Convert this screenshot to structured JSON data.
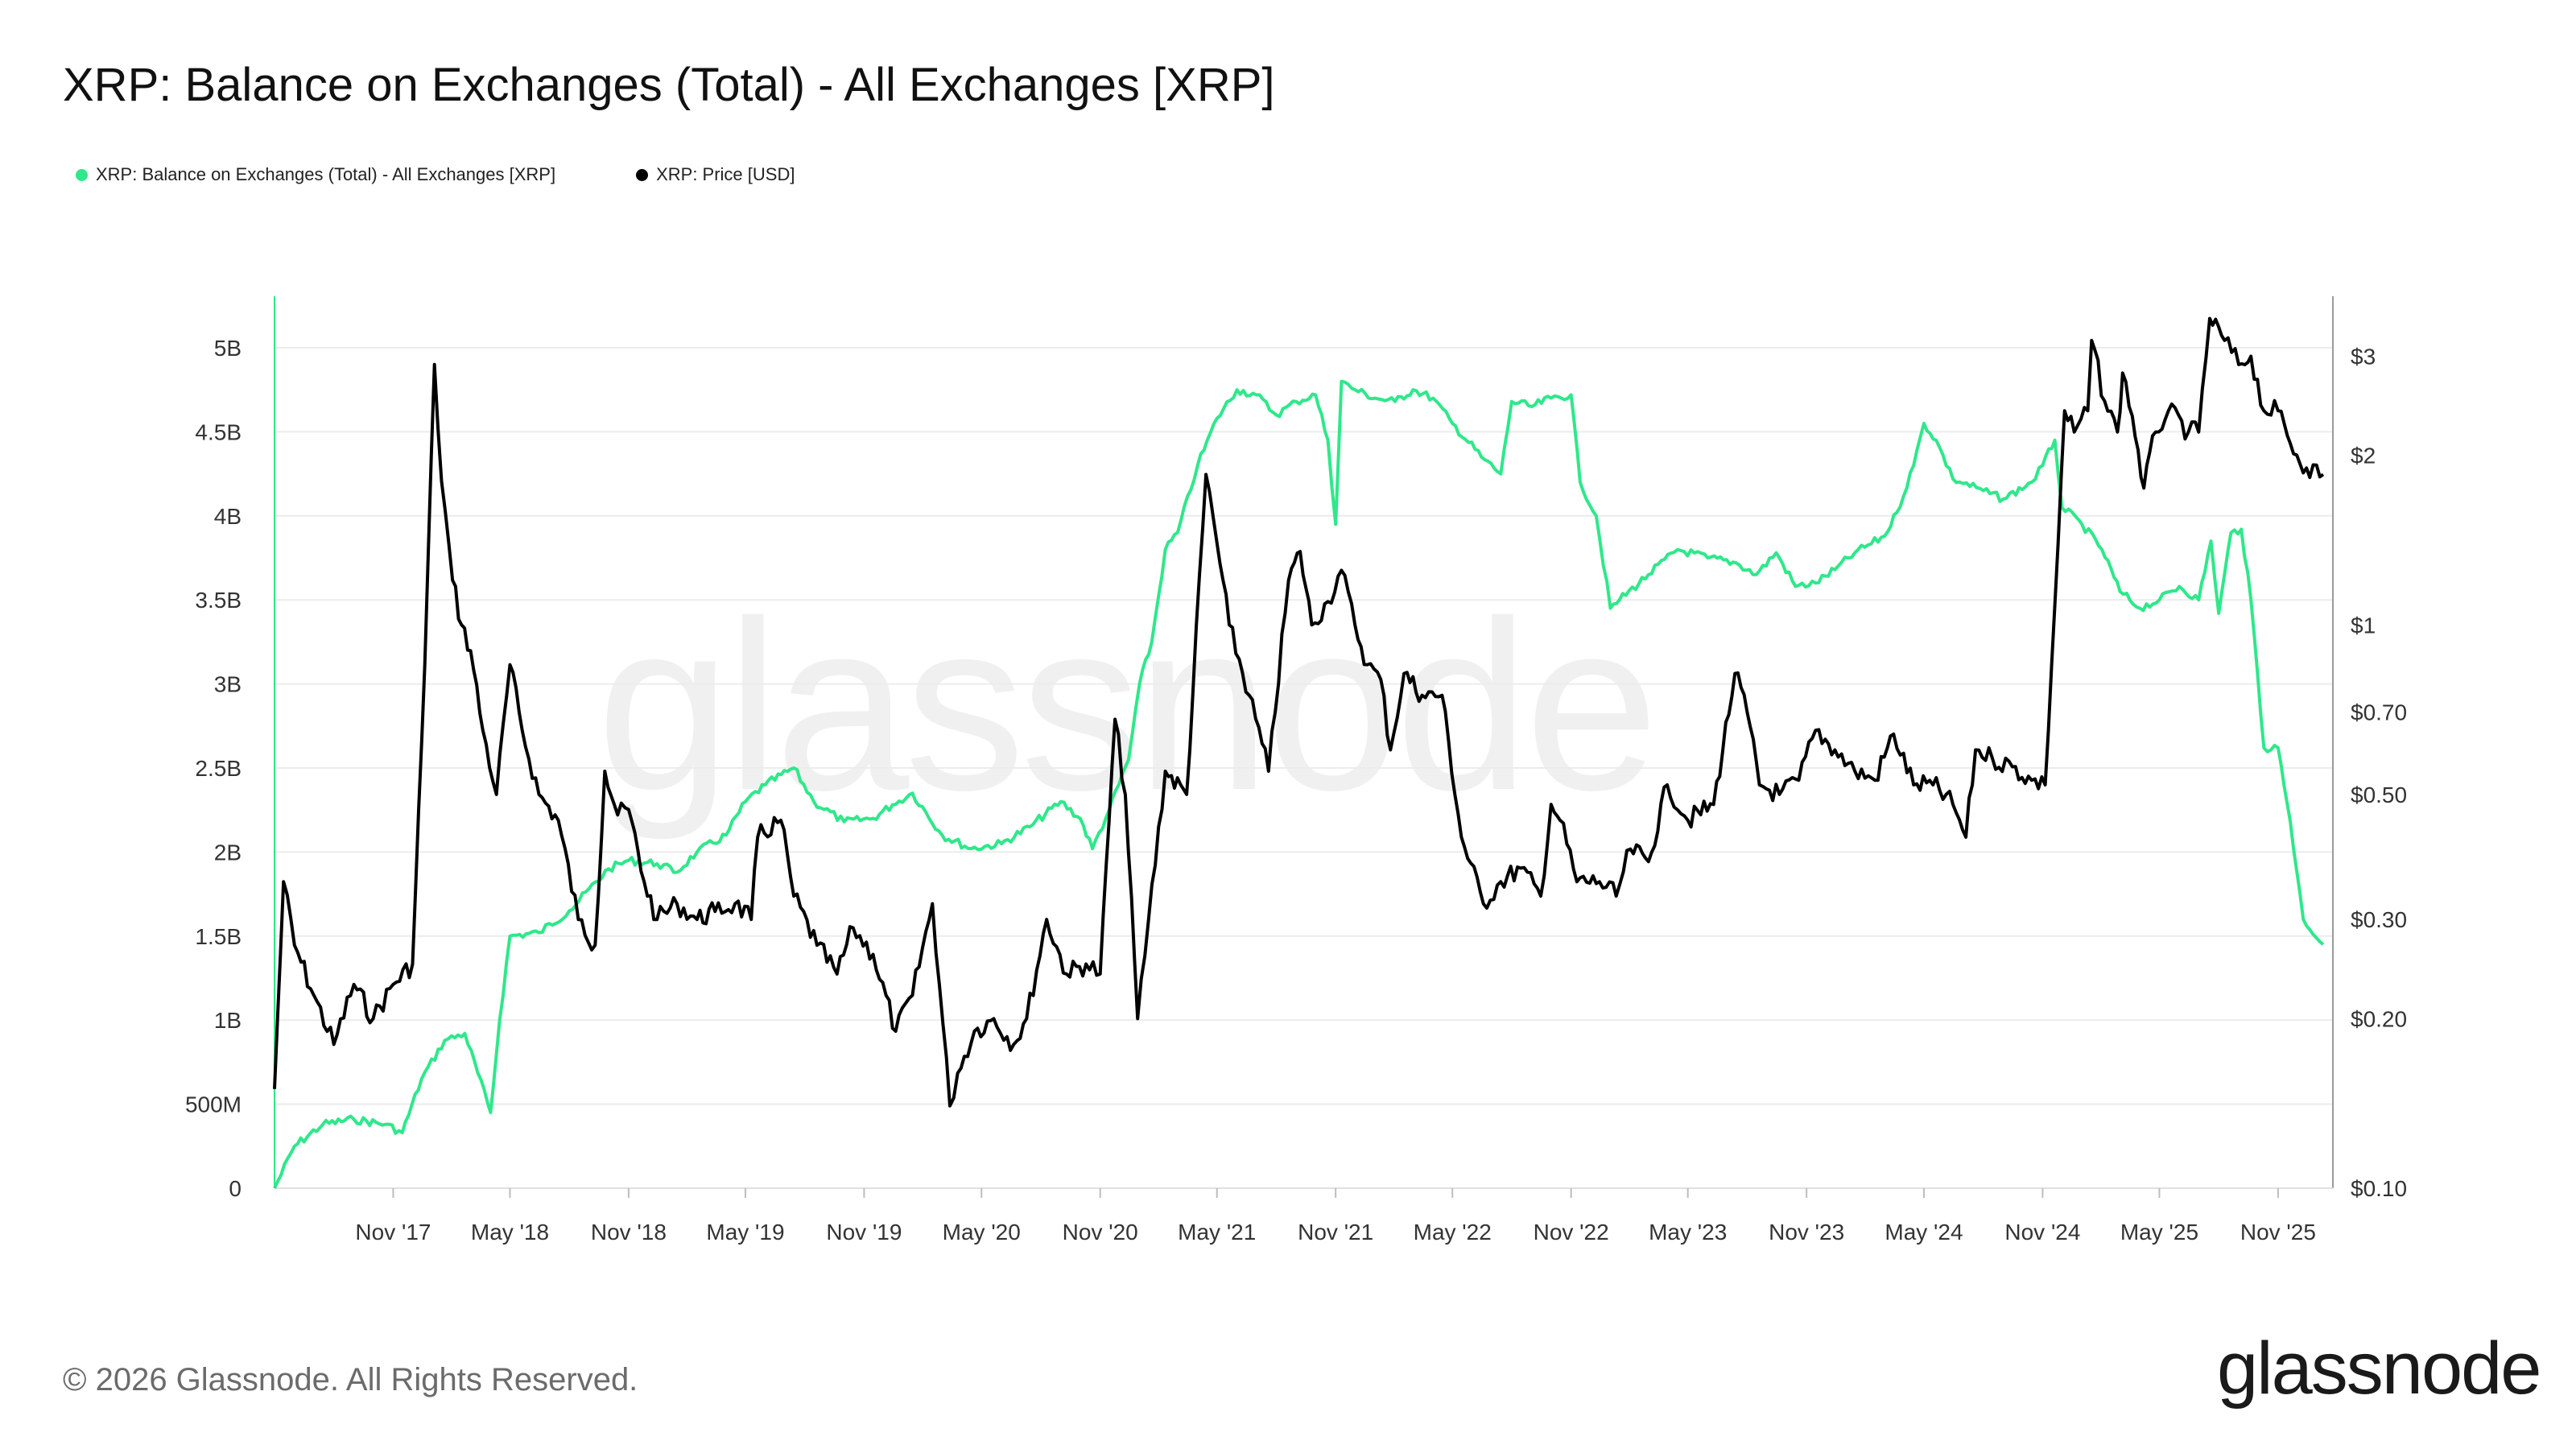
{
  "title": "XRP: Balance on Exchanges (Total) - All Exchanges [XRP]",
  "footer": "© 2026 Glassnode. All Rights Reserved.",
  "brand": "glassnode",
  "watermark": "glassnode",
  "colors": {
    "balance": "#2ee88a",
    "price": "#000000",
    "grid": "#ececec"
  },
  "legend": [
    {
      "name": "XRP: Balance on Exchanges (Total) - All Exchanges [XRP]",
      "color": "#2ee88a"
    },
    {
      "name": "XRP: Price [USD]",
      "color": "#000000"
    }
  ],
  "chart_data": {
    "type": "line",
    "x_ticks": [
      "Nov '17",
      "May '18",
      "Nov '18",
      "May '19",
      "Nov '19",
      "May '20",
      "Nov '20",
      "May '21",
      "Nov '21",
      "May '22",
      "Nov '22",
      "May '23",
      "Nov '23",
      "May '24",
      "Nov '24",
      "May '25",
      "Nov '25"
    ],
    "left_axis": {
      "ticks": [
        "0",
        "500M",
        "1B",
        "1.5B",
        "2B",
        "2.5B",
        "3B",
        "3.5B",
        "4B",
        "4.5B",
        "5B"
      ],
      "tick_values": [
        0,
        0.5,
        1,
        1.5,
        2,
        2.5,
        3,
        3.5,
        4,
        4.5,
        5
      ],
      "unit": "B XRP"
    },
    "right_axis": {
      "scale": "log",
      "ticks": [
        "$0.10",
        "$0.20",
        "$0.30",
        "$0.50",
        "$0.70",
        "$1",
        "$2",
        "$3"
      ],
      "tick_values": [
        0.1,
        0.2,
        0.3,
        0.5,
        0.7,
        1,
        2,
        3
      ]
    },
    "x_range": [
      "2017-05-01",
      "2026-01-15"
    ],
    "grid": true,
    "legend_position": "top-left",
    "series": [
      {
        "name": "XRP: Balance on Exchanges (Total) - All Exchanges [XRP]",
        "axis": "left",
        "color": "#2ee88a",
        "points": [
          [
            "2017-05-01",
            0.0
          ],
          [
            "2017-06-01",
            0.25
          ],
          [
            "2017-07-15",
            0.38
          ],
          [
            "2017-09-01",
            0.41
          ],
          [
            "2017-10-20",
            0.38
          ],
          [
            "2017-11-15",
            0.33
          ],
          [
            "2017-12-15",
            0.65
          ],
          [
            "2018-01-20",
            0.88
          ],
          [
            "2018-02-20",
            0.92
          ],
          [
            "2018-04-01",
            0.45
          ],
          [
            "2018-04-15",
            1.0
          ],
          [
            "2018-05-01",
            1.5
          ],
          [
            "2018-06-15",
            1.52
          ],
          [
            "2018-08-01",
            1.65
          ],
          [
            "2018-10-01",
            1.9
          ],
          [
            "2018-11-01",
            1.95
          ],
          [
            "2018-12-15",
            1.93
          ],
          [
            "2019-01-15",
            1.88
          ],
          [
            "2019-02-15",
            2.0
          ],
          [
            "2019-04-01",
            2.1
          ],
          [
            "2019-05-01",
            2.3
          ],
          [
            "2019-06-01",
            2.4
          ],
          [
            "2019-07-15",
            2.5
          ],
          [
            "2019-08-15",
            2.3
          ],
          [
            "2019-10-01",
            2.18
          ],
          [
            "2019-11-15",
            2.2
          ],
          [
            "2019-12-15",
            2.28
          ],
          [
            "2020-01-15",
            2.35
          ],
          [
            "2020-03-01",
            2.1
          ],
          [
            "2020-04-15",
            2.02
          ],
          [
            "2020-06-01",
            2.05
          ],
          [
            "2020-07-15",
            2.15
          ],
          [
            "2020-09-01",
            2.3
          ],
          [
            "2020-10-01",
            2.2
          ],
          [
            "2020-10-20",
            2.02
          ],
          [
            "2020-11-15",
            2.25
          ],
          [
            "2020-12-15",
            2.55
          ],
          [
            "2021-01-01",
            3.0
          ],
          [
            "2021-01-20",
            3.25
          ],
          [
            "2021-02-10",
            3.8
          ],
          [
            "2021-03-01",
            3.9
          ],
          [
            "2021-04-01",
            4.3
          ],
          [
            "2021-05-01",
            4.58
          ],
          [
            "2021-06-01",
            4.75
          ],
          [
            "2021-07-01",
            4.72
          ],
          [
            "2021-08-01",
            4.6
          ],
          [
            "2021-09-01",
            4.68
          ],
          [
            "2021-10-01",
            4.72
          ],
          [
            "2021-10-20",
            4.45
          ],
          [
            "2021-11-01",
            3.95
          ],
          [
            "2021-11-10",
            4.8
          ],
          [
            "2021-12-01",
            4.75
          ],
          [
            "2022-01-01",
            4.7
          ],
          [
            "2022-02-01",
            4.68
          ],
          [
            "2022-03-01",
            4.75
          ],
          [
            "2022-04-01",
            4.7
          ],
          [
            "2022-05-01",
            4.55
          ],
          [
            "2022-06-15",
            4.35
          ],
          [
            "2022-07-15",
            4.25
          ],
          [
            "2022-08-01",
            4.68
          ],
          [
            "2022-09-01",
            4.65
          ],
          [
            "2022-10-01",
            4.7
          ],
          [
            "2022-11-01",
            4.72
          ],
          [
            "2022-11-15",
            4.2
          ],
          [
            "2022-12-10",
            4.0
          ],
          [
            "2023-01-01",
            3.45
          ],
          [
            "2023-01-15",
            3.5
          ],
          [
            "2023-03-01",
            3.65
          ],
          [
            "2023-04-15",
            3.8
          ],
          [
            "2023-06-01",
            3.75
          ],
          [
            "2023-07-15",
            3.72
          ],
          [
            "2023-08-15",
            3.65
          ],
          [
            "2023-09-15",
            3.78
          ],
          [
            "2023-10-15",
            3.58
          ],
          [
            "2023-11-15",
            3.6
          ],
          [
            "2023-12-15",
            3.68
          ],
          [
            "2024-01-15",
            3.78
          ],
          [
            "2024-03-01",
            3.88
          ],
          [
            "2024-03-20",
            4.02
          ],
          [
            "2024-04-15",
            4.3
          ],
          [
            "2024-05-01",
            4.55
          ],
          [
            "2024-05-20",
            4.45
          ],
          [
            "2024-06-15",
            4.22
          ],
          [
            "2024-08-01",
            4.15
          ],
          [
            "2024-09-01",
            4.1
          ],
          [
            "2024-10-15",
            4.2
          ],
          [
            "2024-11-01",
            4.3
          ],
          [
            "2024-11-20",
            4.45
          ],
          [
            "2024-12-01",
            4.05
          ],
          [
            "2025-01-01",
            3.95
          ],
          [
            "2025-02-01",
            3.8
          ],
          [
            "2025-03-01",
            3.55
          ],
          [
            "2025-04-01",
            3.45
          ],
          [
            "2025-05-01",
            3.5
          ],
          [
            "2025-06-01",
            3.58
          ],
          [
            "2025-07-01",
            3.5
          ],
          [
            "2025-07-20",
            3.85
          ],
          [
            "2025-08-01",
            3.42
          ],
          [
            "2025-08-20",
            3.9
          ],
          [
            "2025-09-05",
            3.92
          ],
          [
            "2025-09-20",
            3.5
          ],
          [
            "2025-10-10",
            2.62
          ],
          [
            "2025-11-01",
            2.62
          ],
          [
            "2025-11-20",
            2.18
          ],
          [
            "2025-12-10",
            1.6
          ],
          [
            "2026-01-10",
            1.45
          ]
        ]
      },
      {
        "name": "XRP: Price [USD]",
        "axis": "right",
        "color": "#000000",
        "points": [
          [
            "2017-05-01",
            0.15
          ],
          [
            "2017-05-15",
            0.35
          ],
          [
            "2017-06-01",
            0.27
          ],
          [
            "2017-07-01",
            0.22
          ],
          [
            "2017-08-01",
            0.18
          ],
          [
            "2017-09-01",
            0.23
          ],
          [
            "2017-10-01",
            0.2
          ],
          [
            "2017-11-01",
            0.23
          ],
          [
            "2017-12-01",
            0.25
          ],
          [
            "2017-12-20",
            0.85
          ],
          [
            "2018-01-04",
            2.9
          ],
          [
            "2018-01-15",
            1.8
          ],
          [
            "2018-02-01",
            1.2
          ],
          [
            "2018-02-15",
            1.0
          ],
          [
            "2018-03-01",
            0.9
          ],
          [
            "2018-03-20",
            0.65
          ],
          [
            "2018-04-10",
            0.5
          ],
          [
            "2018-05-01",
            0.85
          ],
          [
            "2018-05-20",
            0.65
          ],
          [
            "2018-06-15",
            0.5
          ],
          [
            "2018-07-15",
            0.45
          ],
          [
            "2018-08-15",
            0.3
          ],
          [
            "2018-09-10",
            0.27
          ],
          [
            "2018-09-25",
            0.55
          ],
          [
            "2018-10-15",
            0.46
          ],
          [
            "2018-11-01",
            0.47
          ],
          [
            "2018-11-25",
            0.35
          ],
          [
            "2018-12-15",
            0.3
          ],
          [
            "2019-01-15",
            0.32
          ],
          [
            "2019-02-15",
            0.3
          ],
          [
            "2019-03-15",
            0.31
          ],
          [
            "2019-04-15",
            0.32
          ],
          [
            "2019-05-10",
            0.3
          ],
          [
            "2019-05-20",
            0.42
          ],
          [
            "2019-06-25",
            0.45
          ],
          [
            "2019-07-15",
            0.33
          ],
          [
            "2019-08-20",
            0.27
          ],
          [
            "2019-09-20",
            0.24
          ],
          [
            "2019-10-15",
            0.29
          ],
          [
            "2019-11-15",
            0.26
          ],
          [
            "2019-12-20",
            0.19
          ],
          [
            "2020-01-15",
            0.22
          ],
          [
            "2020-02-15",
            0.32
          ],
          [
            "2020-03-13",
            0.14
          ],
          [
            "2020-03-25",
            0.16
          ],
          [
            "2020-04-20",
            0.19
          ],
          [
            "2020-05-20",
            0.2
          ],
          [
            "2020-06-20",
            0.18
          ],
          [
            "2020-07-10",
            0.2
          ],
          [
            "2020-08-10",
            0.3
          ],
          [
            "2020-09-10",
            0.24
          ],
          [
            "2020-10-10",
            0.25
          ],
          [
            "2020-11-01",
            0.24
          ],
          [
            "2020-11-24",
            0.68
          ],
          [
            "2020-12-10",
            0.5
          ],
          [
            "2020-12-29",
            0.2
          ],
          [
            "2021-01-15",
            0.3
          ],
          [
            "2021-02-10",
            0.55
          ],
          [
            "2021-03-15",
            0.5
          ],
          [
            "2021-04-14",
            1.85
          ],
          [
            "2021-05-01",
            1.4
          ],
          [
            "2021-05-20",
            1.0
          ],
          [
            "2021-06-20",
            0.75
          ],
          [
            "2021-07-20",
            0.55
          ],
          [
            "2021-08-20",
            1.2
          ],
          [
            "2021-09-07",
            1.35
          ],
          [
            "2021-09-25",
            1.0
          ],
          [
            "2021-10-20",
            1.1
          ],
          [
            "2021-11-10",
            1.25
          ],
          [
            "2021-12-01",
            1.0
          ],
          [
            "2021-12-20",
            0.85
          ],
          [
            "2022-01-10",
            0.8
          ],
          [
            "2022-01-25",
            0.6
          ],
          [
            "2022-02-15",
            0.82
          ],
          [
            "2022-03-15",
            0.75
          ],
          [
            "2022-04-15",
            0.75
          ],
          [
            "2022-05-15",
            0.42
          ],
          [
            "2022-06-18",
            0.32
          ],
          [
            "2022-07-15",
            0.35
          ],
          [
            "2022-08-15",
            0.37
          ],
          [
            "2022-09-15",
            0.33
          ],
          [
            "2022-10-01",
            0.48
          ],
          [
            "2022-10-15",
            0.45
          ],
          [
            "2022-11-10",
            0.35
          ],
          [
            "2022-12-15",
            0.35
          ],
          [
            "2023-01-10",
            0.33
          ],
          [
            "2023-02-01",
            0.4
          ],
          [
            "2023-03-01",
            0.38
          ],
          [
            "2023-03-30",
            0.52
          ],
          [
            "2023-05-01",
            0.45
          ],
          [
            "2023-06-10",
            0.48
          ],
          [
            "2023-07-13",
            0.82
          ],
          [
            "2023-08-01",
            0.7
          ],
          [
            "2023-08-20",
            0.52
          ],
          [
            "2023-09-20",
            0.5
          ],
          [
            "2023-10-20",
            0.53
          ],
          [
            "2023-11-15",
            0.65
          ],
          [
            "2023-12-15",
            0.6
          ],
          [
            "2024-01-15",
            0.55
          ],
          [
            "2024-02-15",
            0.53
          ],
          [
            "2024-03-15",
            0.64
          ],
          [
            "2024-04-15",
            0.52
          ],
          [
            "2024-05-15",
            0.52
          ],
          [
            "2024-06-15",
            0.48
          ],
          [
            "2024-07-05",
            0.42
          ],
          [
            "2024-07-20",
            0.6
          ],
          [
            "2024-08-15",
            0.58
          ],
          [
            "2024-09-15",
            0.56
          ],
          [
            "2024-10-15",
            0.53
          ],
          [
            "2024-11-05",
            0.52
          ],
          [
            "2024-11-25",
            1.4
          ],
          [
            "2024-12-05",
            2.4
          ],
          [
            "2024-12-20",
            2.2
          ],
          [
            "2025-01-10",
            2.4
          ],
          [
            "2025-01-16",
            3.2
          ],
          [
            "2025-02-05",
            2.5
          ],
          [
            "2025-02-25",
            2.2
          ],
          [
            "2025-03-05",
            2.8
          ],
          [
            "2025-03-20",
            2.35
          ],
          [
            "2025-04-07",
            1.75
          ],
          [
            "2025-04-25",
            2.2
          ],
          [
            "2025-05-15",
            2.4
          ],
          [
            "2025-06-15",
            2.2
          ],
          [
            "2025-07-01",
            2.2
          ],
          [
            "2025-07-18",
            3.5
          ],
          [
            "2025-08-10",
            3.2
          ],
          [
            "2025-09-01",
            2.9
          ],
          [
            "2025-09-20",
            3.0
          ],
          [
            "2025-10-10",
            2.4
          ],
          [
            "2025-11-01",
            2.4
          ],
          [
            "2025-11-20",
            2.1
          ],
          [
            "2025-12-15",
            1.9
          ],
          [
            "2026-01-10",
            1.85
          ]
        ]
      }
    ]
  }
}
